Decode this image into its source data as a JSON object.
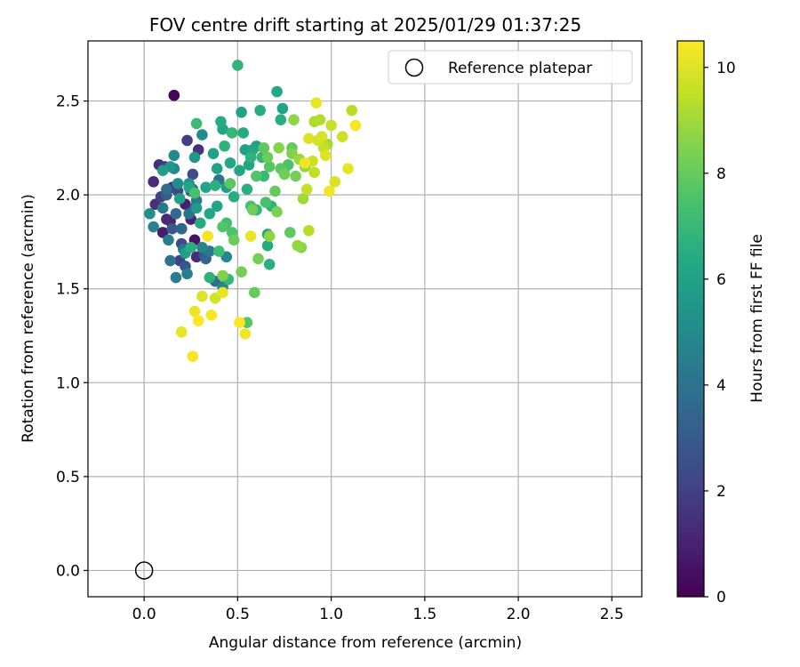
{
  "chart_data": {
    "type": "scatter",
    "title": "FOV centre drift starting at 2025/01/29 01:37:25",
    "xlabel": "Angular distance from reference (arcmin)",
    "ylabel": "Rotation from reference (arcmin)",
    "xlim": [
      -0.3,
      2.66
    ],
    "ylim": [
      -0.14,
      2.82
    ],
    "x_ticks": [
      0.0,
      0.5,
      1.0,
      1.5,
      2.0,
      2.5
    ],
    "y_ticks": [
      0.0,
      0.5,
      1.0,
      1.5,
      2.0,
      2.5
    ],
    "x_tick_labels": [
      "0.0",
      "0.5",
      "1.0",
      "1.5",
      "2.0",
      "2.5"
    ],
    "y_tick_labels": [
      "0.0",
      "0.5",
      "1.0",
      "1.5",
      "2.0",
      "2.5"
    ],
    "grid": true,
    "legend": {
      "position": "top-right",
      "entries": [
        {
          "label": "Reference platepar",
          "marker": "open-circle"
        }
      ]
    },
    "reference_point": {
      "x": 0.0,
      "y": 0.0
    },
    "colorbar": {
      "label": "Hours from first FF file",
      "colormap": "viridis",
      "range": [
        0,
        10.5
      ],
      "ticks": [
        0,
        2,
        4,
        6,
        8,
        10
      ],
      "tick_labels": [
        "0",
        "2",
        "4",
        "6",
        "8",
        "10"
      ]
    },
    "points": [
      {
        "x": 0.16,
        "y": 2.53,
        "h": 0.1
      },
      {
        "x": 0.05,
        "y": 2.07,
        "h": 1.3
      },
      {
        "x": 0.08,
        "y": 2.16,
        "h": 1.5
      },
      {
        "x": 0.11,
        "y": 2.15,
        "h": 1.8
      },
      {
        "x": 0.06,
        "y": 1.95,
        "h": 1.4
      },
      {
        "x": 0.09,
        "y": 1.99,
        "h": 2.0
      },
      {
        "x": 0.12,
        "y": 1.87,
        "h": 1.2
      },
      {
        "x": 0.1,
        "y": 1.8,
        "h": 0.8
      },
      {
        "x": 0.14,
        "y": 1.86,
        "h": 1.1
      },
      {
        "x": 0.15,
        "y": 2.04,
        "h": 1.7
      },
      {
        "x": 0.18,
        "y": 2.02,
        "h": 2.2
      },
      {
        "x": 0.2,
        "y": 1.82,
        "h": 1.6
      },
      {
        "x": 0.22,
        "y": 1.95,
        "h": 0.9
      },
      {
        "x": 0.23,
        "y": 2.29,
        "h": 1.9
      },
      {
        "x": 0.25,
        "y": 1.87,
        "h": 1.0
      },
      {
        "x": 0.27,
        "y": 1.76,
        "h": 0.5
      },
      {
        "x": 0.28,
        "y": 1.67,
        "h": 1.3
      },
      {
        "x": 0.26,
        "y": 2.11,
        "h": 2.4
      },
      {
        "x": 0.29,
        "y": 2.24,
        "h": 1.5
      },
      {
        "x": 0.19,
        "y": 1.65,
        "h": 2.0
      },
      {
        "x": 0.25,
        "y": 2.02,
        "h": 2.6
      },
      {
        "x": 0.15,
        "y": 1.82,
        "h": 2.9
      },
      {
        "x": 0.12,
        "y": 2.0,
        "h": 3.0
      },
      {
        "x": 0.2,
        "y": 1.74,
        "h": 2.3
      },
      {
        "x": 0.22,
        "y": 1.62,
        "h": 2.8
      },
      {
        "x": 0.32,
        "y": 1.68,
        "h": 2.5
      },
      {
        "x": 0.27,
        "y": 1.93,
        "h": 3.2
      },
      {
        "x": 0.03,
        "y": 1.9,
        "h": 5.2
      },
      {
        "x": 0.05,
        "y": 1.83,
        "h": 4.6
      },
      {
        "x": 0.1,
        "y": 1.93,
        "h": 4.2
      },
      {
        "x": 0.12,
        "y": 2.03,
        "h": 3.8
      },
      {
        "x": 0.13,
        "y": 1.76,
        "h": 4.4
      },
      {
        "x": 0.14,
        "y": 1.65,
        "h": 3.9
      },
      {
        "x": 0.16,
        "y": 2.14,
        "h": 4.8
      },
      {
        "x": 0.16,
        "y": 2.21,
        "h": 4.9
      },
      {
        "x": 0.17,
        "y": 1.9,
        "h": 3.6
      },
      {
        "x": 0.17,
        "y": 1.56,
        "h": 4.4
      },
      {
        "x": 0.18,
        "y": 2.06,
        "h": 5.1
      },
      {
        "x": 0.2,
        "y": 1.82,
        "h": 3.5
      },
      {
        "x": 0.21,
        "y": 1.71,
        "h": 4.1
      },
      {
        "x": 0.23,
        "y": 1.58,
        "h": 4.5
      },
      {
        "x": 0.24,
        "y": 1.9,
        "h": 4.0
      },
      {
        "x": 0.24,
        "y": 2.06,
        "h": 5.3
      },
      {
        "x": 0.26,
        "y": 2.03,
        "h": 3.7
      },
      {
        "x": 0.28,
        "y": 1.97,
        "h": 4.3
      },
      {
        "x": 0.31,
        "y": 2.32,
        "h": 5.0
      },
      {
        "x": 0.31,
        "y": 1.72,
        "h": 4.7
      },
      {
        "x": 0.33,
        "y": 1.66,
        "h": 3.4
      },
      {
        "x": 0.35,
        "y": 1.7,
        "h": 4.2
      },
      {
        "x": 0.38,
        "y": 1.54,
        "h": 3.8
      },
      {
        "x": 0.4,
        "y": 2.08,
        "h": 3.9
      },
      {
        "x": 0.42,
        "y": 1.51,
        "h": 4.6
      },
      {
        "x": 0.27,
        "y": 2.2,
        "h": 5.6
      },
      {
        "x": 0.44,
        "y": 1.67,
        "h": 4.8
      },
      {
        "x": 0.1,
        "y": 2.13,
        "h": 5.8
      },
      {
        "x": 0.14,
        "y": 2.15,
        "h": 5.5
      },
      {
        "x": 0.19,
        "y": 1.98,
        "h": 6.0
      },
      {
        "x": 0.22,
        "y": 1.69,
        "h": 5.9
      },
      {
        "x": 0.24,
        "y": 2.04,
        "h": 6.2
      },
      {
        "x": 0.25,
        "y": 1.72,
        "h": 6.5
      },
      {
        "x": 0.28,
        "y": 1.93,
        "h": 5.7
      },
      {
        "x": 0.3,
        "y": 1.85,
        "h": 6.4
      },
      {
        "x": 0.33,
        "y": 2.04,
        "h": 6.1
      },
      {
        "x": 0.35,
        "y": 1.9,
        "h": 6.3
      },
      {
        "x": 0.37,
        "y": 2.22,
        "h": 5.9
      },
      {
        "x": 0.38,
        "y": 2.05,
        "h": 6.6
      },
      {
        "x": 0.39,
        "y": 1.94,
        "h": 6.2
      },
      {
        "x": 0.39,
        "y": 2.14,
        "h": 6.0
      },
      {
        "x": 0.41,
        "y": 2.39,
        "h": 6.4
      },
      {
        "x": 0.42,
        "y": 2.35,
        "h": 6.1
      },
      {
        "x": 0.43,
        "y": 2.26,
        "h": 6.7
      },
      {
        "x": 0.44,
        "y": 2.04,
        "h": 5.8
      },
      {
        "x": 0.46,
        "y": 2.17,
        "h": 6.3
      },
      {
        "x": 0.47,
        "y": 2.33,
        "h": 6.9
      },
      {
        "x": 0.48,
        "y": 1.99,
        "h": 6.5
      },
      {
        "x": 0.5,
        "y": 2.69,
        "h": 6.8
      },
      {
        "x": 0.51,
        "y": 2.13,
        "h": 6.2
      },
      {
        "x": 0.52,
        "y": 2.44,
        "h": 6.0
      },
      {
        "x": 0.53,
        "y": 2.33,
        "h": 6.4
      },
      {
        "x": 0.54,
        "y": 2.24,
        "h": 5.9
      },
      {
        "x": 0.55,
        "y": 2.03,
        "h": 6.6
      },
      {
        "x": 0.56,
        "y": 2.16,
        "h": 6.1
      },
      {
        "x": 0.57,
        "y": 2.2,
        "h": 6.7
      },
      {
        "x": 0.58,
        "y": 2.24,
        "h": 6.3
      },
      {
        "x": 0.6,
        "y": 1.92,
        "h": 6.8
      },
      {
        "x": 0.62,
        "y": 2.45,
        "h": 6.5
      },
      {
        "x": 0.63,
        "y": 2.2,
        "h": 6.9
      },
      {
        "x": 0.64,
        "y": 2.1,
        "h": 7.0
      },
      {
        "x": 0.66,
        "y": 1.79,
        "h": 6.2
      },
      {
        "x": 0.66,
        "y": 1.73,
        "h": 6.4
      },
      {
        "x": 0.67,
        "y": 1.63,
        "h": 6.6
      },
      {
        "x": 0.68,
        "y": 1.94,
        "h": 6.8
      },
      {
        "x": 0.71,
        "y": 2.55,
        "h": 6.3
      },
      {
        "x": 0.73,
        "y": 2.4,
        "h": 6.5
      },
      {
        "x": 0.74,
        "y": 2.46,
        "h": 6.1
      },
      {
        "x": 0.75,
        "y": 2.14,
        "h": 6.9
      },
      {
        "x": 0.28,
        "y": 2.38,
        "h": 7.1
      },
      {
        "x": 0.35,
        "y": 1.56,
        "h": 6.7
      },
      {
        "x": 0.45,
        "y": 1.55,
        "h": 6.9
      },
      {
        "x": 0.4,
        "y": 1.7,
        "h": 7.2
      },
      {
        "x": 0.6,
        "y": 2.26,
        "h": 6.0
      },
      {
        "x": 0.27,
        "y": 2.01,
        "h": 7.4
      },
      {
        "x": 0.42,
        "y": 1.83,
        "h": 7.6
      },
      {
        "x": 0.44,
        "y": 1.85,
        "h": 7.3
      },
      {
        "x": 0.46,
        "y": 2.06,
        "h": 7.8
      },
      {
        "x": 0.47,
        "y": 1.8,
        "h": 7.5
      },
      {
        "x": 0.48,
        "y": 1.76,
        "h": 8.1
      },
      {
        "x": 0.55,
        "y": 1.32,
        "h": 7.7
      },
      {
        "x": 0.57,
        "y": 1.94,
        "h": 7.4
      },
      {
        "x": 0.58,
        "y": 1.92,
        "h": 8.2
      },
      {
        "x": 0.59,
        "y": 1.48,
        "h": 8.0
      },
      {
        "x": 0.6,
        "y": 2.1,
        "h": 7.6
      },
      {
        "x": 0.61,
        "y": 1.66,
        "h": 8.3
      },
      {
        "x": 0.64,
        "y": 2.25,
        "h": 7.9
      },
      {
        "x": 0.65,
        "y": 1.96,
        "h": 7.4
      },
      {
        "x": 0.66,
        "y": 2.2,
        "h": 8.1
      },
      {
        "x": 0.67,
        "y": 2.15,
        "h": 7.7
      },
      {
        "x": 0.7,
        "y": 2.02,
        "h": 8.0
      },
      {
        "x": 0.71,
        "y": 1.91,
        "h": 8.4
      },
      {
        "x": 0.72,
        "y": 2.25,
        "h": 8.6
      },
      {
        "x": 0.73,
        "y": 2.14,
        "h": 7.8
      },
      {
        "x": 0.75,
        "y": 2.11,
        "h": 8.2
      },
      {
        "x": 0.77,
        "y": 2.16,
        "h": 7.5
      },
      {
        "x": 0.78,
        "y": 1.8,
        "h": 7.9
      },
      {
        "x": 0.79,
        "y": 2.22,
        "h": 8.5
      },
      {
        "x": 0.8,
        "y": 2.4,
        "h": 8.7
      },
      {
        "x": 0.81,
        "y": 2.1,
        "h": 8.3
      },
      {
        "x": 0.82,
        "y": 1.73,
        "h": 8.8
      },
      {
        "x": 0.83,
        "y": 2.19,
        "h": 8.9
      },
      {
        "x": 0.84,
        "y": 1.72,
        "h": 8.6
      },
      {
        "x": 0.85,
        "y": 1.98,
        "h": 9.0
      },
      {
        "x": 0.86,
        "y": 2.15,
        "h": 8.8
      },
      {
        "x": 0.42,
        "y": 1.57,
        "h": 8.5
      },
      {
        "x": 0.52,
        "y": 1.59,
        "h": 8.3
      },
      {
        "x": 0.67,
        "y": 1.78,
        "h": 8.7
      },
      {
        "x": 0.79,
        "y": 2.25,
        "h": 8.0
      },
      {
        "x": 0.87,
        "y": 2.03,
        "h": 9.6
      },
      {
        "x": 0.88,
        "y": 1.81,
        "h": 9.4
      },
      {
        "x": 0.9,
        "y": 2.18,
        "h": 9.7
      },
      {
        "x": 0.91,
        "y": 2.39,
        "h": 9.2
      },
      {
        "x": 0.92,
        "y": 2.49,
        "h": 10.2
      },
      {
        "x": 0.93,
        "y": 2.29,
        "h": 9.8
      },
      {
        "x": 0.94,
        "y": 2.4,
        "h": 9.3
      },
      {
        "x": 0.95,
        "y": 2.31,
        "h": 9.9
      },
      {
        "x": 0.96,
        "y": 2.25,
        "h": 9.5
      },
      {
        "x": 0.97,
        "y": 2.21,
        "h": 10.0
      },
      {
        "x": 0.98,
        "y": 2.27,
        "h": 9.1
      },
      {
        "x": 0.99,
        "y": 2.02,
        "h": 10.3
      },
      {
        "x": 1.0,
        "y": 2.37,
        "h": 9.6
      },
      {
        "x": 1.02,
        "y": 2.07,
        "h": 9.9
      },
      {
        "x": 1.06,
        "y": 2.31,
        "h": 9.7
      },
      {
        "x": 1.09,
        "y": 2.14,
        "h": 10.1
      },
      {
        "x": 1.11,
        "y": 2.45,
        "h": 9.4
      },
      {
        "x": 1.13,
        "y": 2.37,
        "h": 10.4
      },
      {
        "x": 0.88,
        "y": 2.3,
        "h": 10.0
      },
      {
        "x": 0.91,
        "y": 2.12,
        "h": 9.5
      },
      {
        "x": 0.86,
        "y": 2.17,
        "h": 10.3
      },
      {
        "x": 0.2,
        "y": 1.27,
        "h": 10.1
      },
      {
        "x": 0.26,
        "y": 1.14,
        "h": 10.4
      },
      {
        "x": 0.27,
        "y": 1.38,
        "h": 10.2
      },
      {
        "x": 0.29,
        "y": 1.33,
        "h": 10.5
      },
      {
        "x": 0.31,
        "y": 1.46,
        "h": 10.0
      },
      {
        "x": 0.34,
        "y": 1.78,
        "h": 10.3
      },
      {
        "x": 0.36,
        "y": 1.36,
        "h": 10.4
      },
      {
        "x": 0.38,
        "y": 1.45,
        "h": 9.8
      },
      {
        "x": 0.42,
        "y": 1.48,
        "h": 10.1
      },
      {
        "x": 0.51,
        "y": 1.32,
        "h": 10.5
      },
      {
        "x": 0.54,
        "y": 1.26,
        "h": 10.3
      },
      {
        "x": 0.57,
        "y": 1.78,
        "h": 10.2
      }
    ]
  }
}
